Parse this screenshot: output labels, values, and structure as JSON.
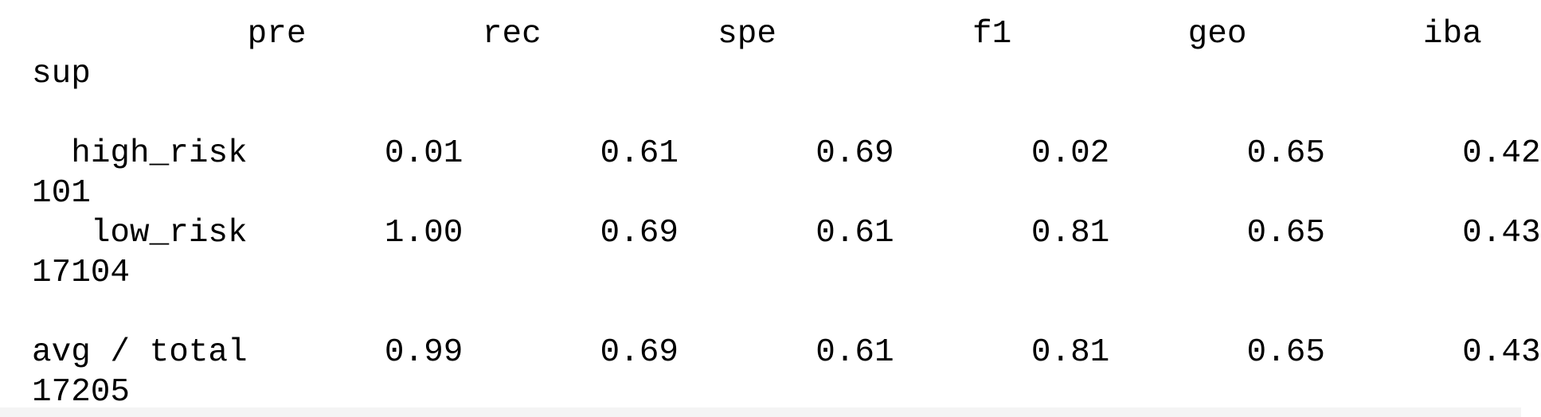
{
  "report": {
    "header": {
      "cols": [
        "pre",
        "rec",
        "spe",
        "f1",
        "geo",
        "iba"
      ],
      "wrapped": "sup"
    },
    "rows": [
      {
        "label": "high_risk",
        "values": [
          "0.01",
          "0.61",
          "0.69",
          "0.02",
          "0.65",
          "0.42"
        ],
        "sup": "101"
      },
      {
        "label": "low_risk",
        "values": [
          "1.00",
          "0.69",
          "0.61",
          "0.81",
          "0.65",
          "0.43"
        ],
        "sup": "17104"
      }
    ],
    "total": {
      "label": "avg / total",
      "values": [
        "0.99",
        "0.69",
        "0.61",
        "0.81",
        "0.65",
        "0.43"
      ],
      "sup": "17205"
    }
  }
}
